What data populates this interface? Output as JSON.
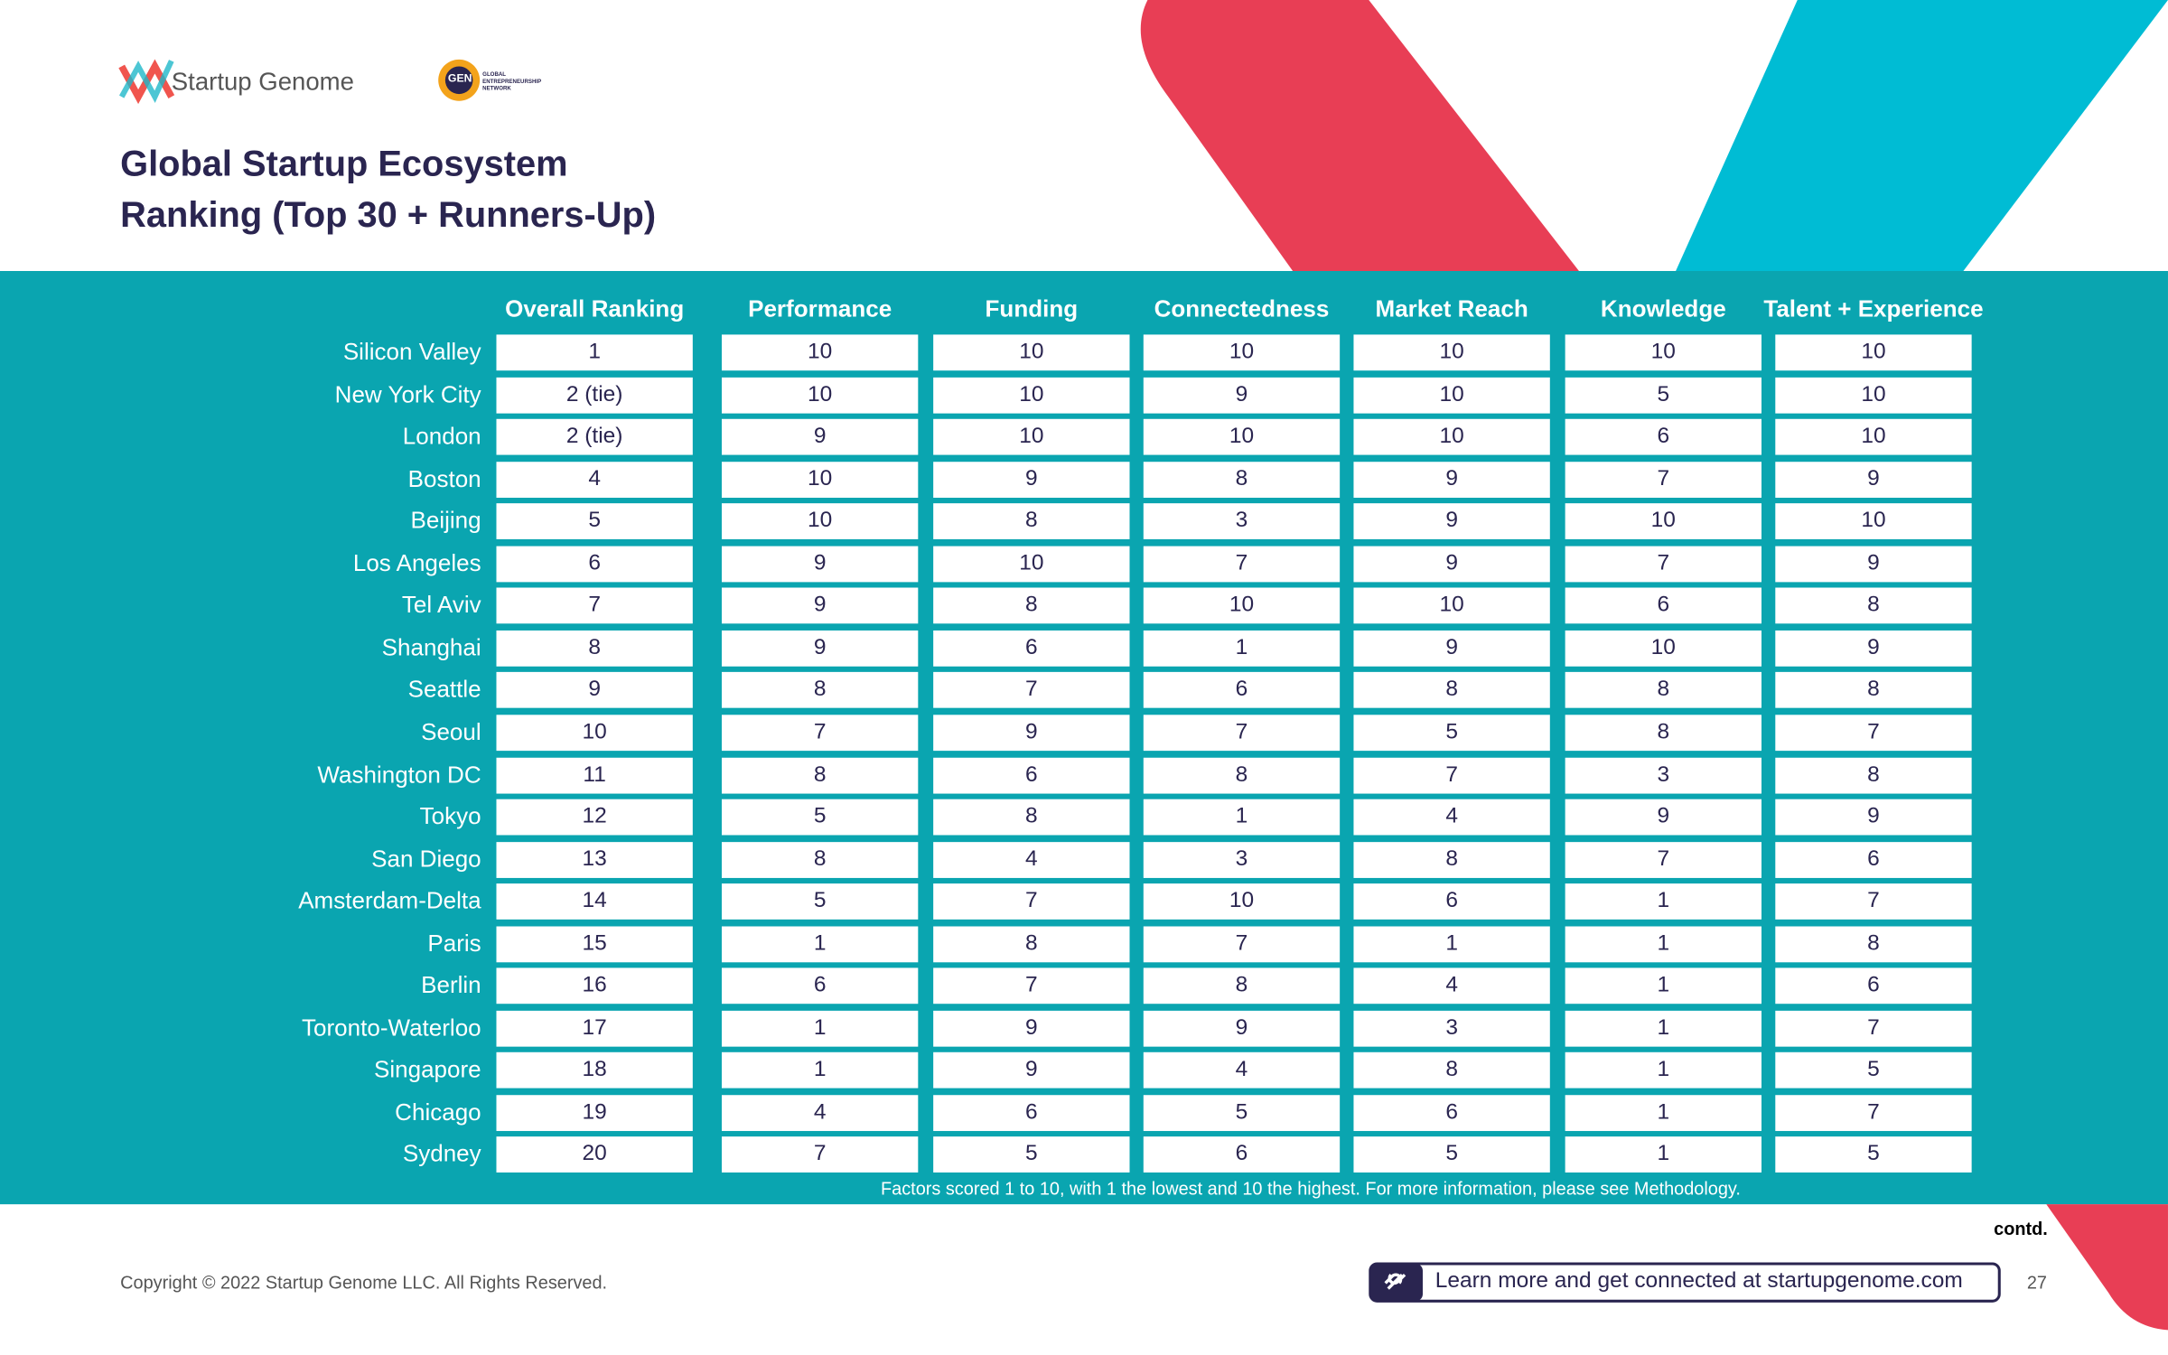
{
  "header": {
    "logo": "Startup Genome",
    "partner_logo": {
      "mark": "GEN",
      "text": "GLOBAL ENTREPRENEURSHIP NETWORK"
    },
    "title_line1": "Global Startup Ecosystem",
    "title_line2": "Ranking (Top 30 + Runners-Up)"
  },
  "table": {
    "columns": [
      "Overall Ranking",
      "Performance",
      "Funding",
      "Connectedness",
      "Market Reach",
      "Knowledge",
      "Talent + Experience"
    ],
    "rows": [
      [
        "Silicon Valley",
        1,
        10,
        10,
        10,
        10,
        10,
        10
      ],
      [
        "New York City",
        "2 (tie)",
        10,
        10,
        9,
        10,
        5,
        10
      ],
      [
        "London",
        "2 (tie)",
        9,
        10,
        10,
        10,
        6,
        10
      ],
      [
        "Boston",
        4,
        10,
        9,
        8,
        9,
        7,
        9
      ],
      [
        "Beijing",
        5,
        10,
        8,
        3,
        9,
        10,
        10
      ],
      [
        "Los Angeles",
        6,
        9,
        10,
        7,
        9,
        7,
        9
      ],
      [
        "Tel Aviv",
        7,
        9,
        8,
        10,
        10,
        6,
        8
      ],
      [
        "Shanghai",
        8,
        9,
        6,
        1,
        9,
        10,
        9
      ],
      [
        "Seattle",
        9,
        8,
        7,
        6,
        8,
        8,
        8
      ],
      [
        "Seoul",
        10,
        7,
        9,
        7,
        5,
        8,
        7
      ],
      [
        "Washington DC",
        11,
        8,
        6,
        8,
        7,
        3,
        8
      ],
      [
        "Tokyo",
        12,
        5,
        8,
        1,
        4,
        9,
        9
      ],
      [
        "San Diego",
        13,
        8,
        4,
        3,
        8,
        7,
        6
      ],
      [
        "Amsterdam-Delta",
        14,
        5,
        7,
        10,
        6,
        1,
        7
      ],
      [
        "Paris",
        15,
        1,
        8,
        7,
        1,
        1,
        8
      ],
      [
        "Berlin",
        16,
        6,
        7,
        8,
        4,
        1,
        6
      ],
      [
        "Toronto-Waterloo",
        17,
        1,
        9,
        9,
        3,
        1,
        7
      ],
      [
        "Singapore",
        18,
        1,
        9,
        4,
        8,
        1,
        5
      ],
      [
        "Chicago",
        19,
        4,
        6,
        5,
        6,
        1,
        7
      ],
      [
        "Sydney",
        20,
        7,
        5,
        6,
        5,
        1,
        5
      ]
    ],
    "note": "Factors scored 1 to 10, with 1 the lowest and 10 the highest. For more information, please see Methodology."
  },
  "footer": {
    "contd": "contd.",
    "copyright": "Copyright © 2022 Startup Genome LLC. All Rights Reserved.",
    "link": "Learn more and get connected at startupgenome.com",
    "page": "27"
  }
}
